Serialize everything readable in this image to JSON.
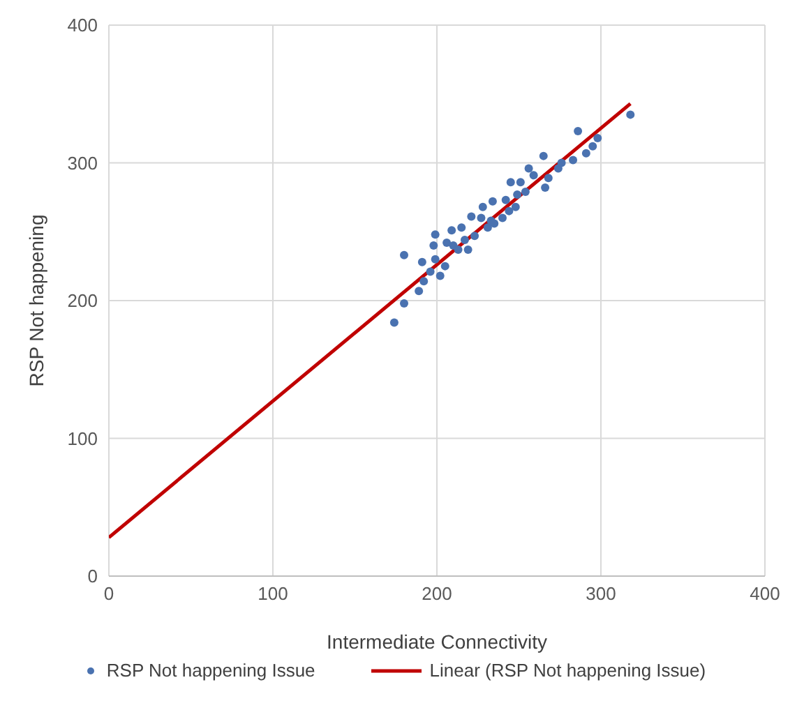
{
  "chart_data": {
    "type": "scatter",
    "xlabel": "Intermediate Connectivity",
    "ylabel": "RSP Not happening",
    "xlim": [
      0,
      400
    ],
    "ylim": [
      0,
      400
    ],
    "xticks": [
      0,
      100,
      200,
      300,
      400
    ],
    "yticks": [
      0,
      100,
      200,
      300,
      400
    ],
    "grid": true,
    "legend": "bottom",
    "series": [
      {
        "name": "RSP Not happening Issue",
        "marker": "circle",
        "color": "#4a72b0",
        "x": [
          174,
          180,
          180,
          189,
          192,
          191,
          196,
          198,
          199,
          199,
          202,
          205,
          206,
          209,
          210,
          215,
          213,
          217,
          219,
          221,
          223,
          227,
          228,
          231,
          234,
          233,
          235,
          240,
          242,
          244,
          245,
          248,
          249,
          251,
          254,
          256,
          259,
          265,
          266,
          268,
          274,
          276,
          283,
          286,
          291,
          295,
          298,
          318
        ],
        "values": [
          184,
          198,
          233,
          207,
          214,
          228,
          221,
          240,
          248,
          230,
          218,
          225,
          242,
          251,
          240,
          253,
          237,
          244,
          237,
          261,
          247,
          260,
          268,
          253,
          272,
          258,
          256,
          260,
          273,
          265,
          286,
          268,
          277,
          286,
          279,
          296,
          291,
          305,
          282,
          289,
          296,
          300,
          302,
          323,
          307,
          312,
          318,
          335
        ]
      },
      {
        "name": "Linear (RSP Not happening Issue)",
        "type": "line",
        "color": "#c00000",
        "x": [
          0,
          318
        ],
        "values": [
          28,
          343
        ]
      }
    ]
  }
}
